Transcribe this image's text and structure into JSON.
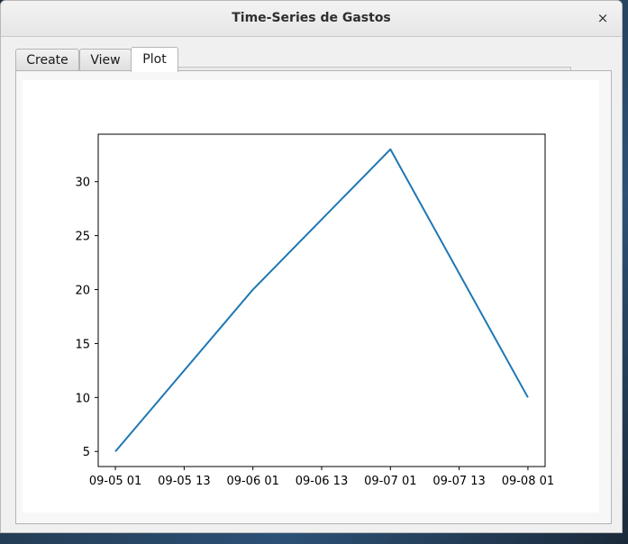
{
  "window": {
    "title": "Time-Series de Gastos",
    "close_label": "×"
  },
  "tabs": [
    {
      "label": "Create",
      "active": false
    },
    {
      "label": "View",
      "active": false
    },
    {
      "label": "Plot",
      "active": true
    }
  ],
  "colors": {
    "line": "#1f77b4",
    "axes": "#000000",
    "background": "#ffffff"
  },
  "chart_data": {
    "type": "line",
    "title": "",
    "xlabel": "",
    "ylabel": "",
    "x": [
      "09-05 01",
      "09-06 01",
      "09-07 01",
      "09-08 01"
    ],
    "xlim": [
      "09-04 22",
      "09-08 04"
    ],
    "xticks": [
      "09-05 01",
      "09-05 13",
      "09-06 01",
      "09-06 13",
      "09-07 01",
      "09-07 13",
      "09-08 01"
    ],
    "ylim": [
      3.6,
      34.4
    ],
    "yticks": [
      5,
      10,
      15,
      20,
      25,
      30
    ],
    "series": [
      {
        "values": [
          5,
          20,
          33,
          10
        ]
      }
    ],
    "grid": false,
    "legend": "none"
  }
}
